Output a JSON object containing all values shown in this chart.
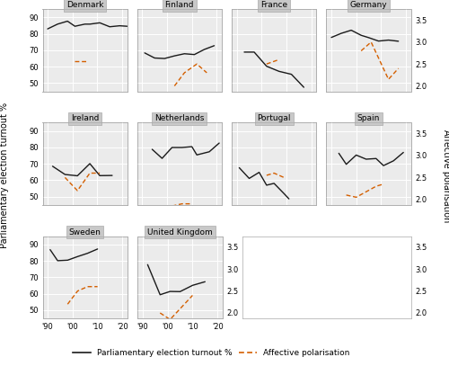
{
  "countries": [
    "Denmark",
    "Finland",
    "France",
    "Germany",
    "Ireland",
    "Netherlands",
    "Portugal",
    "Spain",
    "Sweden",
    "United Kingdom"
  ],
  "row1": [
    "Denmark",
    "Finland",
    "France",
    "Germany"
  ],
  "row2": [
    "Ireland",
    "Netherlands",
    "Portugal",
    "Spain"
  ],
  "row3": [
    "Sweden",
    "United Kingdom"
  ],
  "turnout": {
    "Denmark": [
      83.0,
      85.9,
      87.7,
      84.6,
      85.9,
      85.9,
      86.7,
      84.3,
      84.9,
      84.6
    ],
    "Finland": [
      68.4,
      65.3,
      65.0,
      66.6,
      67.9,
      67.4,
      70.5,
      72.8
    ],
    "France": [
      68.9,
      68.9,
      60.3,
      57.2,
      55.4,
      47.5
    ],
    "Germany": [
      77.8,
      80.3,
      82.2,
      79.1,
      77.7,
      75.6,
      76.2,
      75.5
    ],
    "Ireland": [
      68.5,
      63.5,
      62.7,
      70.1,
      62.8,
      62.9
    ],
    "Netherlands": [
      78.8,
      73.3,
      79.9,
      79.9,
      80.4,
      75.4,
      77.3,
      82.6
    ],
    "Portugal": [
      67.6,
      61.1,
      64.8,
      57.0,
      58.1,
      51.9,
      48.7
    ],
    "Spain": [
      76.4,
      69.7,
      75.3,
      72.8,
      73.2,
      68.9,
      71.8,
      76.9
    ],
    "Sweden": [
      86.8,
      80.1,
      80.4,
      82.6,
      84.6,
      87.2
    ],
    "United Kingdom": [
      77.7,
      59.4,
      61.4,
      61.3,
      65.1,
      67.3
    ]
  },
  "turnout_x": {
    "Denmark": [
      1990,
      1994,
      1998,
      2001,
      2005,
      2007,
      2011,
      2015,
      2019,
      2022
    ],
    "Finland": [
      1991,
      1995,
      1999,
      2003,
      2007,
      2011,
      2015,
      2019
    ],
    "France": [
      1993,
      1997,
      2002,
      2007,
      2012,
      2017
    ],
    "Germany": [
      1990,
      1994,
      1998,
      2002,
      2005,
      2009,
      2013,
      2017
    ],
    "Ireland": [
      1992,
      1997,
      2002,
      2007,
      2011,
      2016
    ],
    "Netherlands": [
      1994,
      1998,
      2002,
      2006,
      2010,
      2012,
      2017,
      2021
    ],
    "Portugal": [
      1991,
      1995,
      1999,
      2002,
      2005,
      2009,
      2011
    ],
    "Spain": [
      1993,
      1996,
      2000,
      2004,
      2008,
      2011,
      2015,
      2019
    ],
    "Sweden": [
      1991,
      1994,
      1998,
      2002,
      2006,
      2010
    ],
    "United Kingdom": [
      1992,
      1997,
      2001,
      2005,
      2010,
      2015
    ]
  },
  "polarisation": {
    "Denmark": [
      2.56,
      2.56
    ],
    "Finland": [
      2.0,
      2.3,
      2.5,
      2.3
    ],
    "France": [
      2.5,
      2.6
    ],
    "Germany": [
      2.8,
      3.0,
      2.15,
      2.4
    ],
    "Ireland": [
      2.5,
      2.2,
      2.6,
      2.6
    ],
    "Netherlands": [
      1.85,
      1.9,
      1.9
    ],
    "Portugal": [
      2.55,
      2.6,
      2.5
    ],
    "Spain": [
      2.1,
      2.05,
      2.3,
      2.35
    ],
    "Sweden": [
      2.2,
      2.5,
      2.6,
      2.6
    ],
    "United Kingdom": [
      2.0,
      1.85,
      2.4
    ]
  },
  "polarisation_x": {
    "Denmark": [
      2001,
      2006
    ],
    "Finland": [
      2003,
      2007,
      2012,
      2016
    ],
    "France": [
      2002,
      2007
    ],
    "Germany": [
      2002,
      2006,
      2013,
      2017
    ],
    "Ireland": [
      1997,
      2002,
      2007,
      2011
    ],
    "Netherlands": [
      2002,
      2006,
      2010
    ],
    "Portugal": [
      2002,
      2005,
      2009
    ],
    "Spain": [
      1996,
      2000,
      2008,
      2011
    ],
    "Sweden": [
      1998,
      2002,
      2006,
      2010
    ],
    "United Kingdom": [
      1997,
      2001,
      2010
    ]
  },
  "ylim_left": [
    45,
    95
  ],
  "ylim_right": [
    1.875,
    3.75
  ],
  "yticks_left": [
    50,
    60,
    70,
    80,
    90
  ],
  "yticks_right": [
    2.0,
    2.5,
    3.0,
    3.5
  ],
  "xtick_positions": [
    1990,
    2000,
    2010,
    2020
  ],
  "xtick_labels": [
    "'90",
    "'00",
    "'10",
    "'20"
  ],
  "background_color": "#ebebeb",
  "panel_header_color": "#c8c8c8",
  "grid_color": "#ffffff",
  "turnout_color": "#1a1a1a",
  "polarisation_color": "#d45f00",
  "ylabel_left": "Parliamentary election turnout %",
  "ylabel_right": "Affective polarisation",
  "legend_turnout": "Parliamentary election turnout %",
  "legend_polarisation": "Affective polarisation"
}
